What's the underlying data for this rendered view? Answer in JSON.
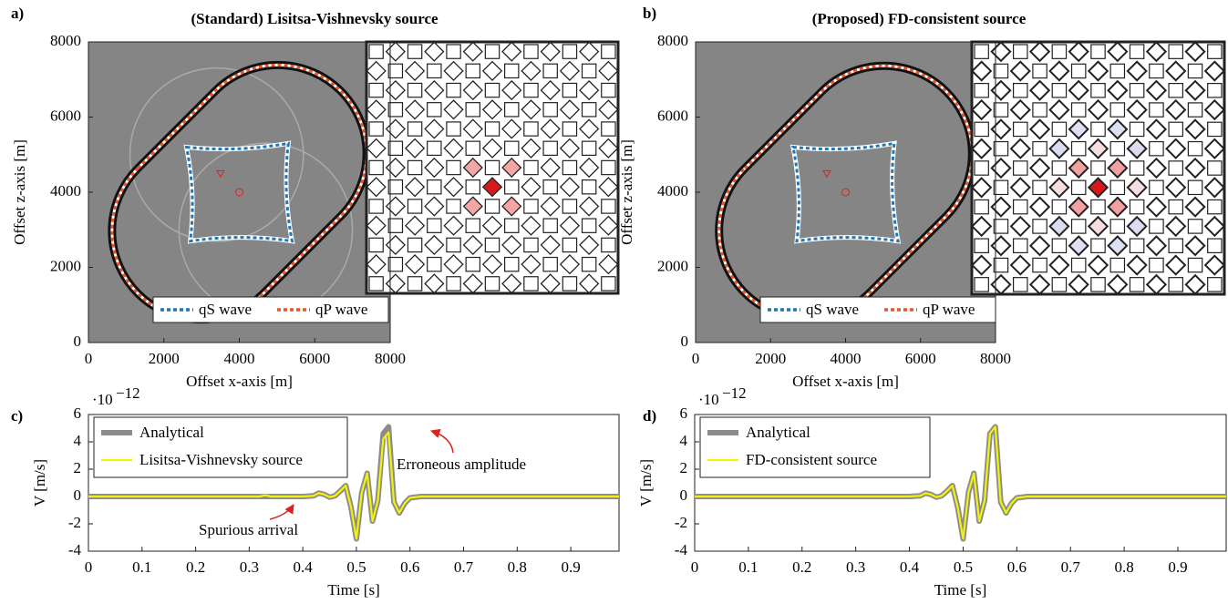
{
  "chart_data": [
    {
      "type": "wavefield",
      "label": "a)",
      "title": "(Standard) Lisitsa-Vishnevsky source",
      "xlabel": "Offset x-axis [m]",
      "ylabel": "Offset z-axis [m]",
      "xlim": [
        0,
        8000
      ],
      "ylim": [
        0,
        8000
      ],
      "xticks": [
        0,
        2000,
        4000,
        6000,
        8000
      ],
      "yticks": [
        0,
        2000,
        4000,
        6000,
        8000
      ],
      "series": [
        {
          "name": "qS wave",
          "color": "#1f77b4"
        },
        {
          "name": "qP wave",
          "color": "#e8562a"
        }
      ]
    },
    {
      "type": "wavefield",
      "label": "b)",
      "title": "(Proposed) FD-consistent source",
      "xlabel": "Offset x-axis [m]",
      "ylabel": "Offset z-axis [m]",
      "xlim": [
        0,
        8000
      ],
      "ylim": [
        0,
        8000
      ],
      "xticks": [
        0,
        2000,
        4000,
        6000,
        8000
      ],
      "yticks": [
        0,
        2000,
        4000,
        6000,
        8000
      ],
      "series": [
        {
          "name": "qS wave",
          "color": "#1f77b4"
        },
        {
          "name": "qP wave",
          "color": "#e8562a"
        }
      ]
    },
    {
      "type": "line",
      "label": "c)",
      "xlabel": "Time [s]",
      "ylabel": "V [m/s]",
      "y_scale": "·10",
      "y_scale_exponent": "−12",
      "xlim": [
        0,
        0.99
      ],
      "ylim": [
        -4,
        6
      ],
      "xticks": [
        0,
        0.1,
        0.2,
        0.3,
        0.4,
        0.5,
        0.6,
        0.7,
        0.8,
        0.9
      ],
      "yticks": [
        -4,
        -2,
        0,
        2,
        4,
        6
      ],
      "x": [
        0,
        0.1,
        0.2,
        0.3,
        0.32,
        0.33,
        0.34,
        0.4,
        0.42,
        0.43,
        0.44,
        0.45,
        0.46,
        0.47,
        0.48,
        0.49,
        0.5,
        0.51,
        0.52,
        0.53,
        0.54,
        0.55,
        0.56,
        0.57,
        0.58,
        0.59,
        0.6,
        0.62,
        0.65,
        0.7,
        0.8,
        0.9,
        0.99
      ],
      "series": [
        {
          "name": "Analytical",
          "color": "#8c8c8c",
          "values": [
            0,
            0,
            0,
            0,
            0,
            0,
            0,
            0,
            0.05,
            0.25,
            0.15,
            -0.05,
            0.05,
            0.4,
            0.8,
            -0.8,
            -3.1,
            0.3,
            1.7,
            -1.8,
            -0.3,
            4.6,
            5.1,
            -0.4,
            -1.2,
            -0.5,
            -0.1,
            0,
            0,
            0,
            0,
            0,
            0
          ]
        },
        {
          "name": "Lisitsa-Vishnevsky source",
          "color": "#f2f20a",
          "values": [
            0,
            0,
            0,
            0,
            0,
            0.1,
            0,
            0,
            0.05,
            0.25,
            0.15,
            -0.05,
            0.05,
            0.4,
            0.8,
            -0.8,
            -3.1,
            0.3,
            1.7,
            -1.8,
            -0.3,
            4.2,
            4.7,
            -0.4,
            -1.2,
            -0.5,
            -0.1,
            0,
            0,
            0,
            0,
            0,
            0
          ]
        }
      ],
      "annotations": [
        "Erroneous amplitude",
        "Spurious arrival"
      ]
    },
    {
      "type": "line",
      "label": "d)",
      "xlabel": "Time [s]",
      "ylabel": "V [m/s]",
      "y_scale": "·10",
      "y_scale_exponent": "−12",
      "xlim": [
        0,
        0.99
      ],
      "ylim": [
        -4,
        6
      ],
      "xticks": [
        0,
        0.1,
        0.2,
        0.3,
        0.4,
        0.5,
        0.6,
        0.7,
        0.8,
        0.9
      ],
      "yticks": [
        -4,
        -2,
        0,
        2,
        4,
        6
      ],
      "x": [
        0,
        0.1,
        0.2,
        0.3,
        0.4,
        0.42,
        0.43,
        0.44,
        0.45,
        0.46,
        0.47,
        0.48,
        0.49,
        0.5,
        0.51,
        0.52,
        0.53,
        0.54,
        0.55,
        0.56,
        0.57,
        0.58,
        0.59,
        0.6,
        0.62,
        0.65,
        0.7,
        0.8,
        0.9,
        0.99
      ],
      "series": [
        {
          "name": "Analytical",
          "color": "#8c8c8c",
          "values": [
            0,
            0,
            0,
            0,
            0,
            0.05,
            0.25,
            0.15,
            -0.05,
            0.05,
            0.4,
            0.8,
            -0.8,
            -3.1,
            0.3,
            1.7,
            -1.8,
            -0.3,
            4.6,
            5.1,
            -0.4,
            -1.2,
            -0.5,
            -0.1,
            0,
            0,
            0,
            0,
            0,
            0
          ]
        },
        {
          "name": "FD-consistent source",
          "color": "#f2f20a",
          "values": [
            0,
            0,
            0,
            0,
            0,
            0.05,
            0.25,
            0.15,
            -0.05,
            0.05,
            0.4,
            0.8,
            -0.8,
            -3.1,
            0.3,
            1.7,
            -1.8,
            -0.3,
            4.6,
            5.1,
            -0.4,
            -1.2,
            -0.5,
            -0.1,
            0,
            0,
            0,
            0,
            0,
            0
          ]
        }
      ]
    }
  ]
}
